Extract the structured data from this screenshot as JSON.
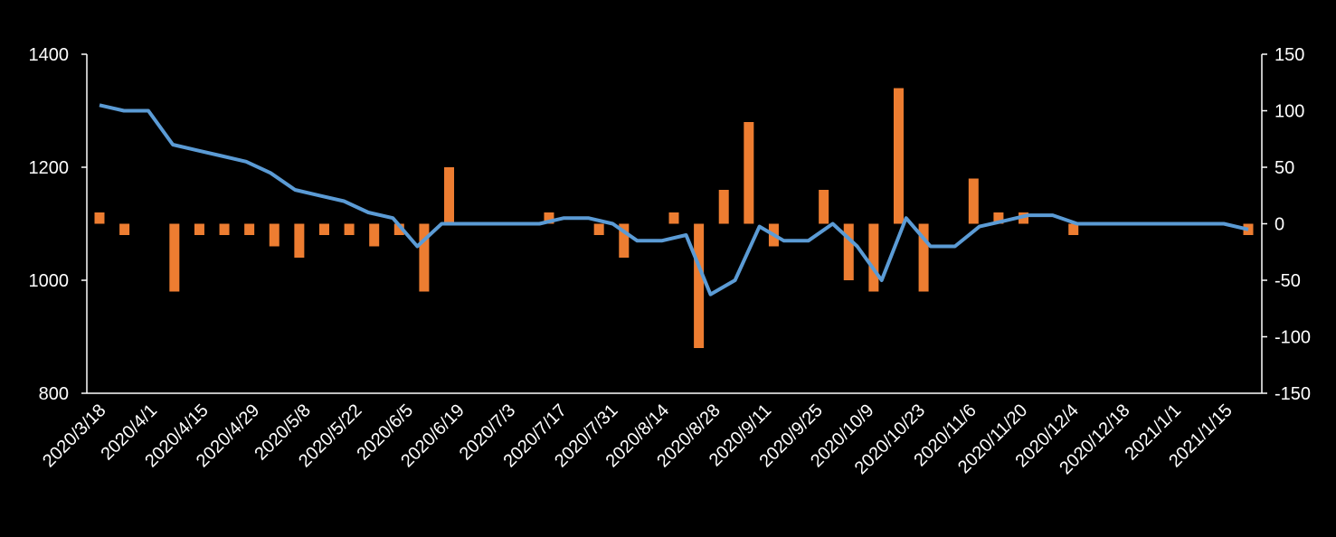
{
  "chart_data": {
    "type": "bar+line",
    "title": "",
    "x_tick_labels": [
      "2020/3/18",
      "2020/4/1",
      "2020/4/15",
      "2020/4/29",
      "2020/5/8",
      "2020/5/22",
      "2020/6/5",
      "2020/6/19",
      "2020/7/3",
      "2020/7/17",
      "2020/7/31",
      "2020/8/14",
      "2020/8/28",
      "2020/9/11",
      "2020/9/25",
      "2020/10/9",
      "2020/10/23",
      "2020/11/6",
      "2020/11/20",
      "2020/12/4",
      "2020/12/18",
      "2021/1/1",
      "2021/1/15"
    ],
    "y_left": {
      "lim": [
        800,
        1400
      ],
      "ticks": [
        800,
        1000,
        1200,
        1400
      ]
    },
    "y_right": {
      "lim": [
        -150,
        150
      ],
      "ticks": [
        -150,
        -100,
        -50,
        0,
        50,
        100,
        150
      ]
    },
    "series": [
      {
        "type": "line",
        "axis": "left",
        "color": "#5b9bd5",
        "values": [
          1310,
          1300,
          1300,
          1240,
          1230,
          1220,
          1210,
          1190,
          1160,
          1150,
          1140,
          1120,
          1110,
          1060,
          1100,
          1100,
          1100,
          1100,
          1100,
          1110,
          1110,
          1100,
          1070,
          1070,
          1080,
          975,
          1000,
          1095,
          1070,
          1070,
          1100,
          1060,
          1000,
          1110,
          1060,
          1060,
          1095,
          1105,
          1115,
          1115,
          1100,
          1100,
          1100,
          1100,
          1100,
          1100,
          1100,
          1090
        ]
      },
      {
        "type": "bar",
        "axis": "right",
        "color": "#ed7d31",
        "values": [
          10,
          -10,
          0,
          -60,
          -10,
          -10,
          -10,
          -20,
          -30,
          -10,
          -10,
          -20,
          -10,
          -60,
          50,
          0,
          0,
          0,
          10,
          0,
          -10,
          -30,
          0,
          10,
          -110,
          30,
          90,
          -20,
          0,
          30,
          -50,
          -60,
          120,
          -60,
          0,
          40,
          10,
          10,
          0,
          -10,
          0,
          0,
          0,
          0,
          0,
          0,
          -10
        ]
      }
    ]
  }
}
